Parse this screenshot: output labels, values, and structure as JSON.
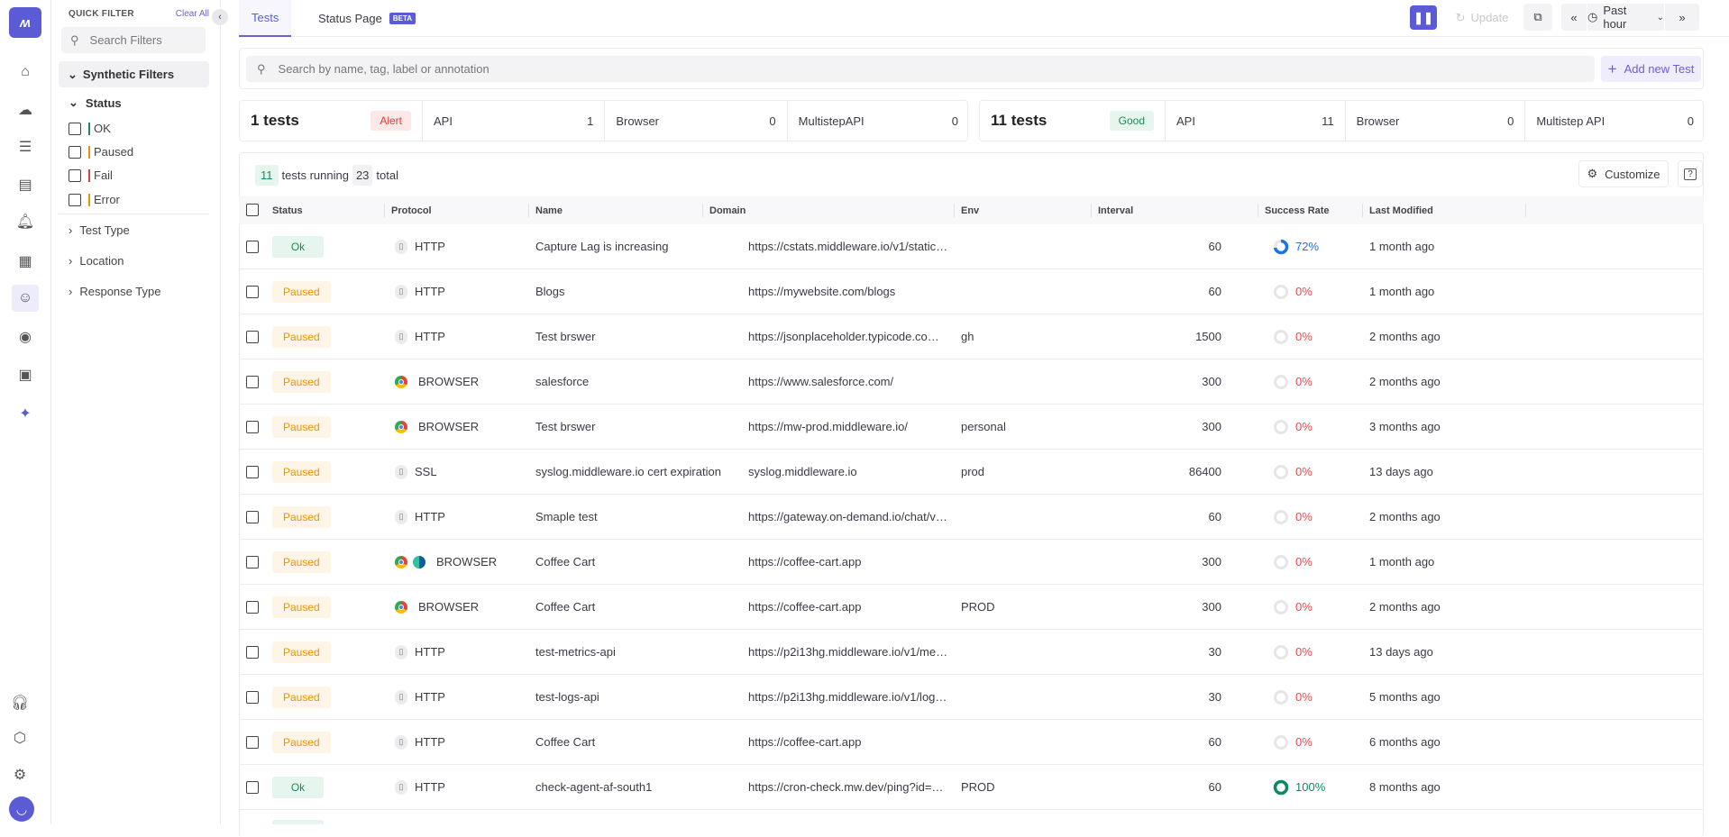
{
  "app": {
    "logo": "MW"
  },
  "rail": {
    "icons": [
      "home-icon",
      "infrastructure-icon",
      "logs-icon",
      "report-icon",
      "alert-icon",
      "dashboard-add-icon",
      "synthetics-robot-icon",
      "rum-icon",
      "chip-icon",
      "ai-sparkle-icon"
    ],
    "bottom_icons": [
      "support-headset-icon",
      "integrations-box-icon",
      "settings-gear-icon",
      "avatar"
    ]
  },
  "filters": {
    "title": "QUICK FILTER",
    "clear_all": "Clear All",
    "search_placeholder": "Search Filters",
    "synthetic": "Synthetic Filters",
    "status_label": "Status",
    "statuses": [
      {
        "label": "OK",
        "color": "#1d8a55"
      },
      {
        "label": "Paused",
        "color": "#e8940a"
      },
      {
        "label": "Fail",
        "color": "#d93f3f"
      },
      {
        "label": "Error",
        "color": "#e8940a"
      }
    ],
    "sections": [
      "Test Type",
      "Location",
      "Response Type"
    ]
  },
  "tabs": [
    {
      "label": "Tests"
    },
    {
      "label": "Status Page",
      "badge": "BETA"
    }
  ],
  "toolbar": {
    "update": "Update",
    "time_range": "Past hour",
    "accent": "#5b5bd6"
  },
  "search": {
    "placeholder": "Search by name, tag, label or annotation",
    "add_button": "Add new Test"
  },
  "summary": [
    {
      "count": "1 tests",
      "state": "Alert",
      "items": [
        {
          "label": "API",
          "value": "1"
        },
        {
          "label": "Browser",
          "value": "0"
        },
        {
          "label": "MultistepAPI",
          "value": "0"
        }
      ]
    },
    {
      "count": "11 tests",
      "state": "Good",
      "items": [
        {
          "label": "API",
          "value": "11"
        },
        {
          "label": "Browser",
          "value": "0"
        },
        {
          "label": "Multistep API",
          "value": "0"
        }
      ]
    }
  ],
  "table": {
    "running": "11",
    "running_label": "tests running",
    "total": "23",
    "total_label": "total",
    "customize": "Customize",
    "columns": [
      "Status",
      "Protocol",
      "Name",
      "Domain",
      "Env",
      "Interval",
      "Success Rate",
      "Last Modified"
    ],
    "rows": [
      {
        "status": "Ok",
        "protocol": "HTTP",
        "icons": [
          "http"
        ],
        "name": "Capture Lag is increasing",
        "domain": "https://cstats.middleware.io/v1/static…",
        "env": "",
        "interval": "60",
        "success": 72,
        "modified": "1 month ago"
      },
      {
        "status": "Paused",
        "protocol": "HTTP",
        "icons": [
          "http"
        ],
        "name": "Blogs",
        "domain": "https://mywebsite.com/blogs",
        "env": "",
        "interval": "60",
        "success": 0,
        "modified": "1 month ago"
      },
      {
        "status": "Paused",
        "protocol": "HTTP",
        "icons": [
          "http"
        ],
        "name": "Test brswer",
        "domain": "https://jsonplaceholder.typicode.co…",
        "env": "gh",
        "interval": "1500",
        "success": 0,
        "modified": "2 months ago"
      },
      {
        "status": "Paused",
        "protocol": "BROWSER",
        "icons": [
          "chrome"
        ],
        "name": "salesforce",
        "domain": "https://www.salesforce.com/",
        "env": "",
        "interval": "300",
        "success": 0,
        "modified": "2 months ago"
      },
      {
        "status": "Paused",
        "protocol": "BROWSER",
        "icons": [
          "chrome"
        ],
        "name": "Test brswer",
        "domain": "https://mw-prod.middleware.io/",
        "env": "personal",
        "interval": "300",
        "success": 0,
        "modified": "3 months ago"
      },
      {
        "status": "Paused",
        "protocol": "SSL",
        "icons": [
          "http"
        ],
        "name": "syslog.middleware.io cert expiration",
        "domain": "syslog.middleware.io",
        "env": "prod",
        "interval": "86400",
        "success": 0,
        "modified": "13 days ago"
      },
      {
        "status": "Paused",
        "protocol": "HTTP",
        "icons": [
          "http"
        ],
        "name": "Smaple test",
        "domain": "https://gateway.on-demand.io/chat/v…",
        "env": "",
        "interval": "60",
        "success": 0,
        "modified": "2 months ago"
      },
      {
        "status": "Paused",
        "protocol": "BROWSER",
        "icons": [
          "chrome",
          "edge"
        ],
        "name": "Coffee Cart",
        "domain": "https://coffee-cart.app",
        "env": "",
        "interval": "300",
        "success": 0,
        "modified": "1 month ago"
      },
      {
        "status": "Paused",
        "protocol": "BROWSER",
        "icons": [
          "chrome"
        ],
        "name": "Coffee Cart",
        "domain": "https://coffee-cart.app",
        "env": "PROD",
        "interval": "300",
        "success": 0,
        "modified": "2 months ago"
      },
      {
        "status": "Paused",
        "protocol": "HTTP",
        "icons": [
          "http"
        ],
        "name": "test-metrics-api",
        "domain": "https://p2i13hg.middleware.io/v1/me…",
        "env": "",
        "interval": "30",
        "success": 0,
        "modified": "13 days ago"
      },
      {
        "status": "Paused",
        "protocol": "HTTP",
        "icons": [
          "http"
        ],
        "name": "test-logs-api",
        "domain": "https://p2i13hg.middleware.io/v1/log…",
        "env": "",
        "interval": "30",
        "success": 0,
        "modified": "5 months ago"
      },
      {
        "status": "Paused",
        "protocol": "HTTP",
        "icons": [
          "http"
        ],
        "name": "Coffee Cart",
        "domain": "https://coffee-cart.app",
        "env": "",
        "interval": "60",
        "success": 0,
        "modified": "6 months ago"
      },
      {
        "status": "Ok",
        "protocol": "HTTP",
        "icons": [
          "http"
        ],
        "name": "check-agent-af-south1",
        "domain": "https://cron-check.mw.dev/ping?id=…",
        "env": "PROD",
        "interval": "60",
        "success": 100,
        "modified": "8 months ago"
      }
    ]
  },
  "colors": {
    "ring_partial": "#1a73e8",
    "ring_full": "#0f8a5f",
    "ring_empty": "#e6e6ea",
    "zero_text": "#e5484d"
  }
}
